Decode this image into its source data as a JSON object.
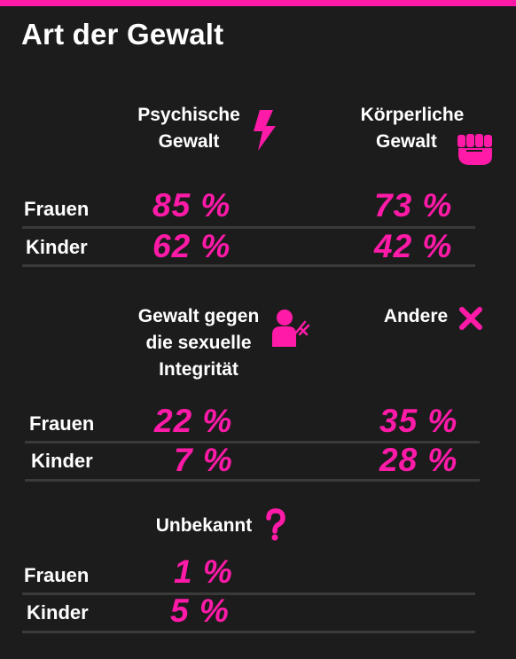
{
  "title": "Art der Gewalt",
  "colors": {
    "accent": "#ff1aa8",
    "background": "#1c1c1c",
    "text": "#ffffff"
  },
  "sections": {
    "psychisch": {
      "label_line1": "Psychische",
      "label_line2": "Gewalt",
      "icon": "lightning-icon",
      "frauen": "85 %",
      "kinder": "62 %"
    },
    "koerperlich": {
      "label_line1": "Körperliche",
      "label_line2": "Gewalt",
      "icon": "fist-icon",
      "frauen": "73 %",
      "kinder": "42 %"
    },
    "sexuell": {
      "label_line1": "Gewalt gegen",
      "label_line2": "die sexuelle",
      "label_line3": "Integrität",
      "icon": "person-grabbed-icon",
      "frauen": "22 %",
      "kinder": "7 %"
    },
    "andere": {
      "label_line1": "Andere",
      "icon": "x-mark-icon",
      "frauen": "35 %",
      "kinder": "28 %"
    },
    "unbekannt": {
      "label_line1": "Unbekannt",
      "icon": "question-mark-icon",
      "frauen": "1 %",
      "kinder": "5 %"
    }
  },
  "row_labels": {
    "frauen": "Frauen",
    "kinder": "Kinder"
  }
}
